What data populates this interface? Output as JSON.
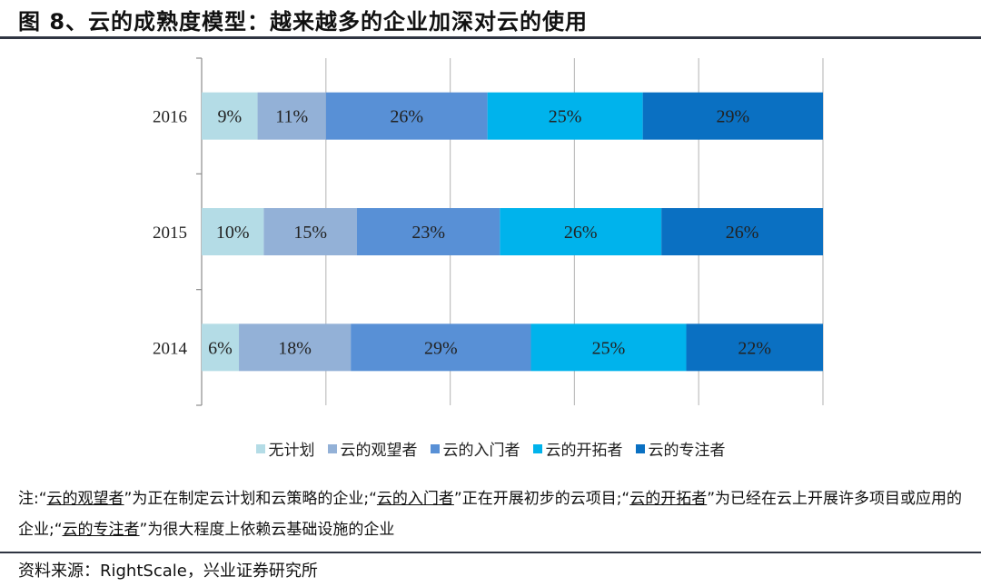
{
  "figure_title": "图 8、云的成熟度模型：越来越多的企业加深对云的使用",
  "chart_data": {
    "type": "bar",
    "orientation": "horizontal",
    "stacked": "percent",
    "categories": [
      "2016",
      "2015",
      "2014"
    ],
    "series": [
      {
        "name": "无计划",
        "color": "#b4dce6",
        "values": [
          9,
          10,
          6
        ]
      },
      {
        "name": "云的观望者",
        "color": "#93b1d7",
        "values": [
          11,
          15,
          18
        ]
      },
      {
        "name": "云的入门者",
        "color": "#5890d6",
        "values": [
          26,
          23,
          29
        ]
      },
      {
        "name": "云的开拓者",
        "color": "#00b3ec",
        "values": [
          25,
          26,
          25
        ]
      },
      {
        "name": "云的专注者",
        "color": "#0a70c2",
        "values": [
          29,
          26,
          22
        ]
      }
    ],
    "data_labels": [
      [
        "9%",
        "11%",
        "26%",
        "25%",
        "29%"
      ],
      [
        "10%",
        "15%",
        "23%",
        "26%",
        "26%"
      ],
      [
        "6%",
        "18%",
        "29%",
        "25%",
        "22%"
      ]
    ],
    "xlim": [
      0,
      100
    ],
    "grid": true,
    "legend_position": "bottom"
  },
  "note": {
    "prefix": "注:“",
    "t1": "云的观望者",
    "s1": "”为正在制定云计划和云策略的企业;“",
    "t2": "云的入门者",
    "s2": "”正在开展初步的云项目;“",
    "t3": "云的开拓者",
    "s3": "”为已经在云上开展许多项目或应用的企业;“",
    "t4": "云的专注者",
    "s4": "”为很大程度上依赖云基础设施的企业"
  },
  "source": "资料来源：RightScale，兴业证券研究所"
}
